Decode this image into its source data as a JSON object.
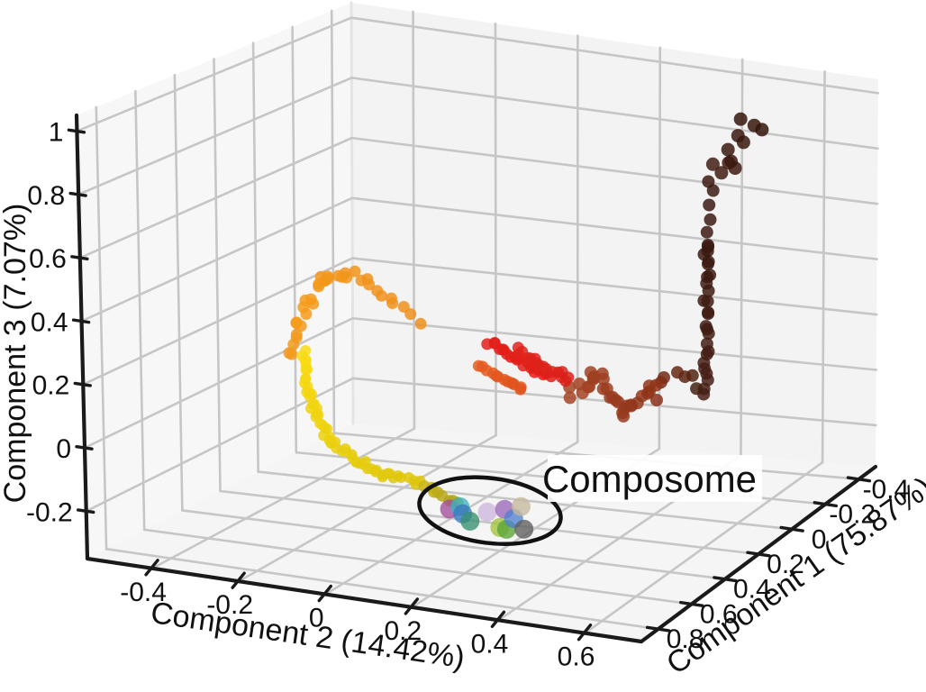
{
  "chart_data": {
    "type": "scatter",
    "projection": "3d",
    "title": "",
    "annotation": {
      "label": "Composome"
    },
    "axes": {
      "x": {
        "label": "Component 1 (75.87%)",
        "range": [
          -0.5,
          0.9
        ],
        "tick_labels": [
          "0.8",
          "0.6",
          "0.4",
          "0.2",
          "0",
          "-0.2",
          "-0.4"
        ],
        "tick_values": [
          0.8,
          0.6,
          0.4,
          0.2,
          0,
          -0.2,
          -0.4
        ]
      },
      "y": {
        "label": "Component 2 (14.42%)",
        "range": [
          -0.55,
          0.73
        ],
        "tick_labels": [
          "-0.4",
          "-0.2",
          "0",
          "0.2",
          "0.4",
          "0.6"
        ],
        "tick_values": [
          -0.4,
          -0.2,
          0,
          0.2,
          0.4,
          0.6
        ]
      },
      "z": {
        "label": "Component 3 (7.07%)",
        "range": [
          -0.35,
          1.05
        ],
        "tick_labels": [
          "1",
          "0.8",
          "0.6",
          "0.4",
          "0.2",
          "0",
          "-0.2"
        ],
        "tick_values": [
          1,
          0.8,
          0.6,
          0.4,
          0.2,
          0,
          -0.2
        ]
      }
    },
    "layout": {
      "grid": true,
      "background": "#ffffff",
      "pane_left": "#f7f7f7",
      "pane_right": "#f3f3f3",
      "pane_floor": "#f5f5f5",
      "grid_color": "#c6c6c6",
      "spine_color": "#1a1a1a",
      "pane_edge_color": "#e4e4e4"
    },
    "trajectory_segments": [
      {
        "name": "maroon-top-scatter",
        "n": 11,
        "radius": 7.5,
        "opacity": 0.85,
        "color_start": "#421d15",
        "color_end": "#331409",
        "jitter": [
          0.01,
          0.035,
          0.05
        ],
        "path": [
          [
            -0.29,
            0.44,
            0.7
          ],
          [
            -0.29,
            0.52,
            0.9
          ]
        ]
      },
      {
        "name": "maroon-column-upper",
        "n": 7,
        "radius": 7,
        "opacity": 0.85,
        "color_start": "#3c1a12",
        "color_end": "#3c1a12",
        "jitter": [
          0.005,
          0.01,
          0.02
        ],
        "path": [
          [
            -0.29,
            0.41,
            0.42
          ],
          [
            -0.29,
            0.415,
            0.68
          ]
        ]
      },
      {
        "name": "maroon-column",
        "n": 24,
        "radius": 7,
        "opacity": 0.85,
        "color_start": "#471f16",
        "color_end": "#39190f",
        "jitter": [
          0.004,
          0.008,
          0.012
        ],
        "path": [
          [
            -0.285,
            0.405,
            -0.05
          ],
          [
            -0.29,
            0.41,
            0.45
          ]
        ]
      },
      {
        "name": "maroon-sienna-bridge",
        "n": 7,
        "radius": 7,
        "opacity": 0.85,
        "color_start": "#44200f",
        "color_end": "#8a301b",
        "jitter": [
          0.01,
          0.01,
          0.015
        ],
        "path": [
          [
            -0.27,
            0.4,
            -0.02
          ],
          [
            0.05,
            0.47,
            0.13
          ],
          [
            0.36,
            0.56,
            0.17
          ]
        ]
      },
      {
        "name": "sienna-cluster",
        "n": 30,
        "radius": 7,
        "opacity": 0.85,
        "color_start": "#a64526",
        "color_end": "#8f3419",
        "jitter": [
          0.012,
          0.012,
          0.018
        ],
        "path": [
          [
            0.41,
            0.38,
            0.17
          ],
          [
            0.39,
            0.44,
            0.23
          ],
          [
            0.42,
            0.5,
            0.12
          ],
          [
            0.38,
            0.57,
            0.21
          ]
        ]
      },
      {
        "name": "red-streak-1",
        "n": 20,
        "radius": 6.5,
        "opacity": 0.85,
        "color_start": "#e41f1a",
        "color_end": "#df1d18",
        "jitter": [
          0.008,
          0.006,
          0.01
        ],
        "path": [
          [
            0.32,
            0.15,
            0.27
          ],
          [
            0.32,
            0.285,
            0.175
          ]
        ]
      },
      {
        "name": "red-streak-2",
        "n": 16,
        "radius": 6.5,
        "opacity": 0.85,
        "color_start": "#e0241c",
        "color_end": "#da2019",
        "jitter": [
          0.008,
          0.006,
          0.01
        ],
        "path": [
          [
            0.27,
            0.19,
            0.235
          ],
          [
            0.27,
            0.315,
            0.16
          ]
        ]
      },
      {
        "name": "orange-red-streak",
        "n": 12,
        "radius": 6.5,
        "opacity": 0.85,
        "color_start": "#e65c1f",
        "color_end": "#e0521c",
        "jitter": [
          0.008,
          0.006,
          0.01
        ],
        "path": [
          [
            0.36,
            0.14,
            0.21
          ],
          [
            0.36,
            0.245,
            0.145
          ]
        ]
      },
      {
        "name": "orange-left-tail",
        "n": 7,
        "radius": 6.5,
        "opacity": 0.85,
        "color_start": "#f29a20",
        "color_end": "#f29a20",
        "jitter": [
          0.006,
          0.008,
          0.012
        ],
        "path": [
          [
            0.33,
            -0.315,
            0.16
          ],
          [
            0.31,
            -0.305,
            0.26
          ]
        ]
      },
      {
        "name": "orange-arc",
        "n": 28,
        "radius": 6.5,
        "opacity": 0.85,
        "color_start": "#f59c1a",
        "color_end": "#ef8f1c",
        "jitter": [
          0.008,
          0.012,
          0.015
        ],
        "path": [
          [
            0.31,
            -0.3,
            0.26
          ],
          [
            0.33,
            -0.2,
            0.44
          ],
          [
            0.31,
            -0.03,
            0.31
          ]
        ]
      },
      {
        "name": "yellow-curve",
        "n": 58,
        "radius": 6,
        "opacity": 0.85,
        "color_start": "#f9db13",
        "color_end": "#ddc60c",
        "jitter": [
          0.006,
          0.008,
          0.01
        ],
        "path": [
          [
            0.37,
            -0.27,
            0.2
          ],
          [
            0.41,
            -0.19,
            -0.06
          ],
          [
            0.41,
            0.015,
            -0.165
          ]
        ]
      },
      {
        "name": "olive-entry",
        "n": 9,
        "radius": 6.5,
        "opacity": 0.85,
        "color_start": "#c9b414",
        "color_end": "#a89e1f",
        "jitter": [
          0.004,
          0.006,
          0.008
        ],
        "path": [
          [
            0.41,
            0.03,
            -0.175
          ],
          [
            0.41,
            0.115,
            -0.225
          ]
        ]
      }
    ],
    "composome_cluster": {
      "radius": 10.5,
      "opacity": 0.78,
      "points": [
        {
          "c1": 0.41,
          "c2": 0.086,
          "c3": -0.236,
          "color": "#a14e9b"
        },
        {
          "c1": 0.41,
          "c2": 0.111,
          "c3": -0.225,
          "color": "#3ab3c2"
        },
        {
          "c1": 0.41,
          "c2": 0.117,
          "c3": -0.246,
          "color": "#3b79c0"
        },
        {
          "c1": 0.41,
          "c2": 0.134,
          "c3": -0.266,
          "color": "#349070"
        },
        {
          "c1": 0.41,
          "c2": 0.175,
          "c3": -0.231,
          "color": "#cdb6de"
        },
        {
          "c1": 0.41,
          "c2": 0.216,
          "c3": -0.216,
          "color": "#9c68b8"
        },
        {
          "c1": 0.41,
          "c2": 0.204,
          "c3": -0.274,
          "color": "#a2c23c"
        },
        {
          "c1": 0.41,
          "c2": 0.22,
          "c3": -0.277,
          "color": "#5aa434"
        },
        {
          "c1": 0.41,
          "c2": 0.237,
          "c3": -0.241,
          "color": "#4f80d0"
        },
        {
          "c1": 0.41,
          "c2": 0.255,
          "c3": -0.201,
          "color": "#c4b79e"
        },
        {
          "c1": 0.41,
          "c2": 0.261,
          "c3": -0.27,
          "color": "#5e5e5e"
        }
      ],
      "ellipse_center": {
        "c1": 0.41,
        "c2": 0.173,
        "c3": -0.238
      }
    }
  }
}
